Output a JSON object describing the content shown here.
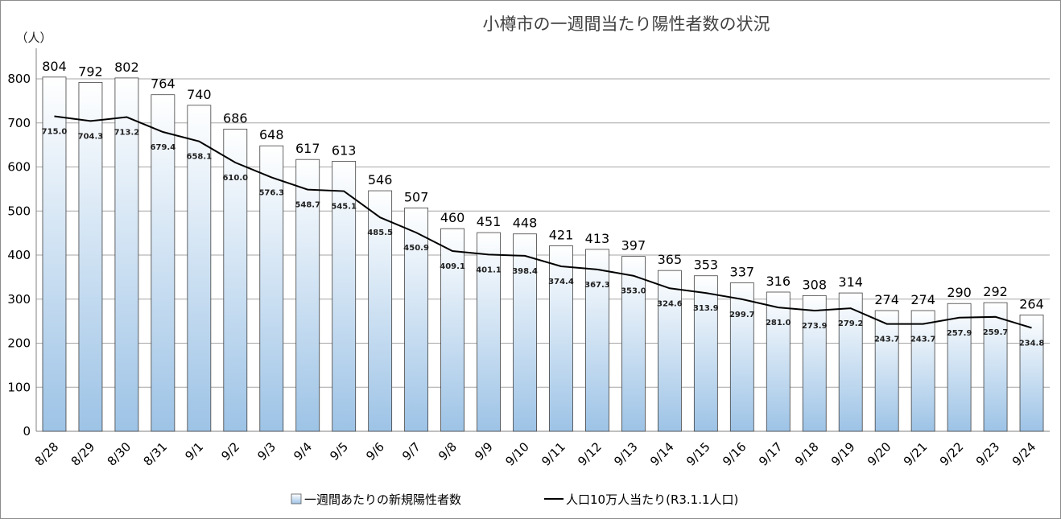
{
  "chart_data": {
    "type": "bar",
    "title": "小樽市の一週間当たり陽性者数の状況",
    "unit_label": "（人）",
    "ylim": [
      0,
      900
    ],
    "yticks": [
      0,
      100,
      200,
      300,
      400,
      500,
      600,
      700,
      800
    ],
    "grid": true,
    "legend_position": "bottom",
    "categories": [
      "8/28",
      "8/29",
      "8/30",
      "8/31",
      "9/1",
      "9/2",
      "9/3",
      "9/4",
      "9/5",
      "9/6",
      "9/7",
      "9/8",
      "9/9",
      "9/10",
      "9/11",
      "9/12",
      "9/13",
      "9/14",
      "9/15",
      "9/16",
      "9/17",
      "9/18",
      "9/19",
      "9/20",
      "9/21",
      "9/22",
      "9/23",
      "9/24"
    ],
    "series": [
      {
        "name": "一週間あたりの新規陽性者数",
        "type": "bar",
        "color": "#9dc3e6",
        "values": [
          804,
          792,
          802,
          764,
          740,
          686,
          648,
          617,
          613,
          546,
          507,
          460,
          451,
          448,
          421,
          413,
          397,
          365,
          353,
          337,
          316,
          308,
          314,
          274,
          274,
          290,
          292,
          264
        ],
        "labels": [
          "804",
          "792",
          "802",
          "764",
          "740",
          "686",
          "648",
          "617",
          "613",
          "546",
          "507",
          "460",
          "451",
          "448",
          "421",
          "413",
          "397",
          "365",
          "353",
          "337",
          "316",
          "308",
          "314",
          "274",
          "274",
          "290",
          "292",
          "264"
        ]
      },
      {
        "name": "人口10万人当たり(R3.1.1人口)",
        "type": "line",
        "color": "#000000",
        "values": [
          715.0,
          704.3,
          713.2,
          679.4,
          658.1,
          610.0,
          576.3,
          548.7,
          545.1,
          485.5,
          450.9,
          409.1,
          401.1,
          398.4,
          374.4,
          367.3,
          353.0,
          324.6,
          313.9,
          299.7,
          281.0,
          273.9,
          279.2,
          243.7,
          243.7,
          257.9,
          259.7,
          234.8
        ],
        "labels": [
          "715.0",
          "704.3",
          "713.2",
          "679.4",
          "658.1",
          "610.0",
          "576.3",
          "548.7",
          "545.1",
          "485.5",
          "450.9",
          "409.1",
          "401.1",
          "398.4",
          "374.4",
          "367.3",
          "353.0",
          "324.6",
          "313.9",
          "299.7",
          "281.0",
          "273.9",
          "279.2",
          "243.7",
          "243.7",
          "257.9",
          "259.7",
          "234.8"
        ]
      }
    ]
  }
}
